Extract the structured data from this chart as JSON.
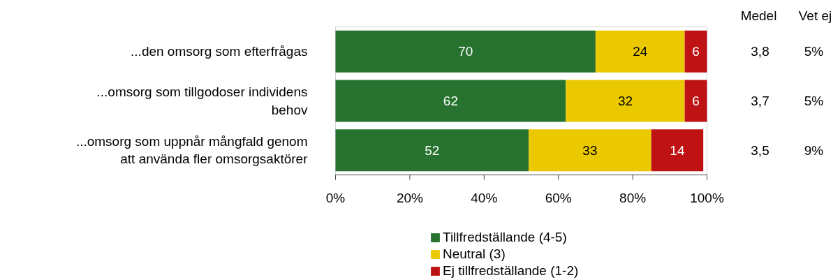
{
  "chart_data": {
    "type": "bar",
    "orientation": "horizontal",
    "stacked": true,
    "data_labels": true,
    "categories": [
      "...den omsorg som efterfrågas",
      "...omsorg som tillgodoser individens behov",
      "...omsorg som uppnår mångfald genom att använda fler omsorgsaktörer"
    ],
    "series": [
      {
        "name": "Tillfredställande (4-5)",
        "color": "#26722e",
        "values": [
          70,
          62,
          52
        ]
      },
      {
        "name": "Neutral (3)",
        "color": "#ebc900",
        "values": [
          24,
          32,
          33
        ]
      },
      {
        "name": "Ej tillfredställande (1-2)",
        "color": "#be1214",
        "values": [
          6,
          6,
          14
        ]
      }
    ],
    "xlim": [
      0,
      100
    ],
    "xticks": [
      {
        "value": 0,
        "label": "0%"
      },
      {
        "value": 20,
        "label": "20%"
      },
      {
        "value": 40,
        "label": "40%"
      },
      {
        "value": 60,
        "label": "60%"
      },
      {
        "value": 80,
        "label": "80%"
      },
      {
        "value": 100,
        "label": "100%"
      }
    ],
    "grid": false,
    "legend": "bottom",
    "annotations": [
      "Medel",
      "Vet ej",
      "3,8",
      "5%",
      "3,7",
      "5%",
      "3,5",
      "9%"
    ]
  }
}
